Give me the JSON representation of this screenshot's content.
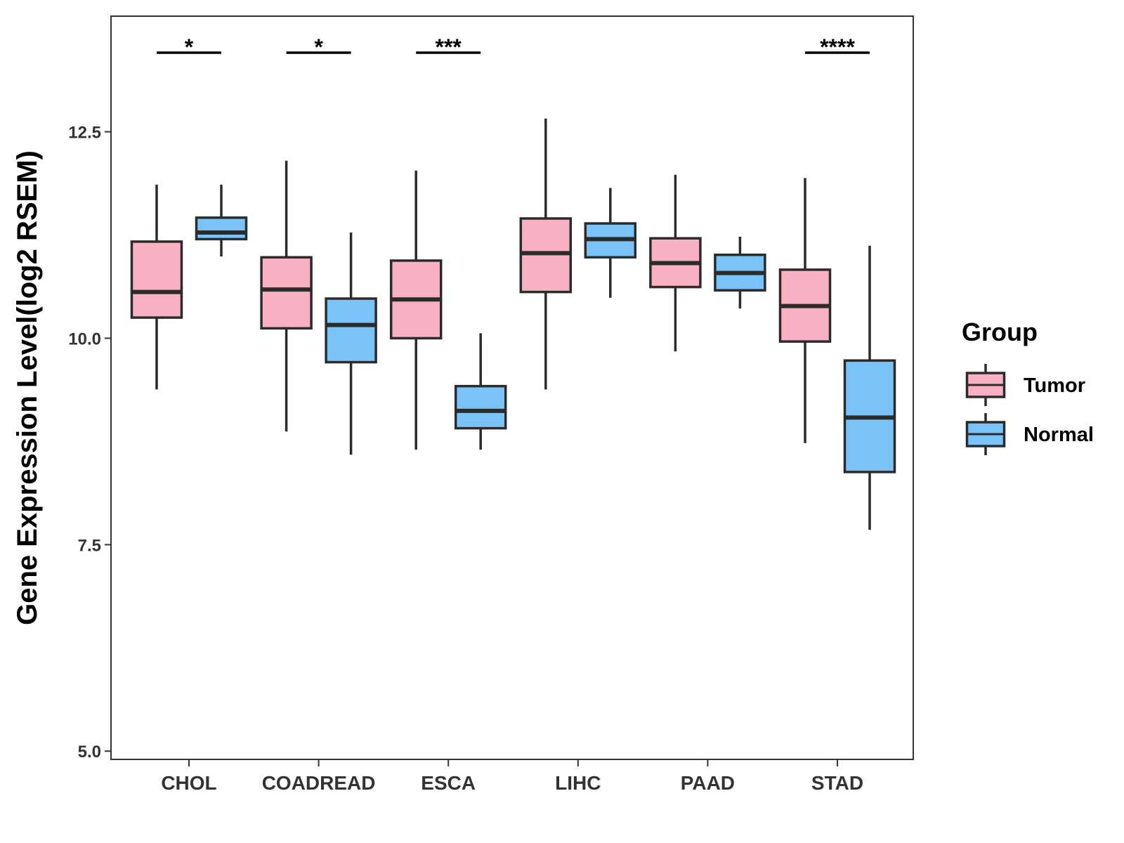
{
  "chart_data": {
    "type": "boxplot",
    "title": "",
    "xlabel": "",
    "ylabel": "Gene Expression Level(log2 RSEM)",
    "ylim": [
      4.9,
      13.9
    ],
    "yticks": [
      5.0,
      7.5,
      10.0,
      12.5
    ],
    "ytick_labels": [
      "5.0",
      "7.5",
      "10.0",
      "12.5"
    ],
    "categories": [
      "CHOL",
      "COADREAD",
      "ESCA",
      "LIHC",
      "PAAD",
      "STAD"
    ],
    "legend": {
      "title": "Group",
      "position": "right",
      "items": [
        {
          "label": "Tumor",
          "color": "#F9B0C2"
        },
        {
          "label": "Normal",
          "color": "#79C3F8"
        }
      ]
    },
    "series": [
      {
        "name": "Tumor",
        "color": "#F9B0C2",
        "boxes": [
          {
            "whisker_low": 9.38,
            "q1": 10.25,
            "median": 10.56,
            "q3": 11.17,
            "whisker_high": 11.86
          },
          {
            "whisker_low": 8.87,
            "q1": 10.12,
            "median": 10.59,
            "q3": 10.98,
            "whisker_high": 12.15
          },
          {
            "whisker_low": 8.65,
            "q1": 10.0,
            "median": 10.47,
            "q3": 10.94,
            "whisker_high": 12.03
          },
          {
            "whisker_low": 9.38,
            "q1": 10.56,
            "median": 11.03,
            "q3": 11.45,
            "whisker_high": 12.66
          },
          {
            "whisker_low": 9.84,
            "q1": 10.62,
            "median": 10.91,
            "q3": 11.21,
            "whisker_high": 11.98
          },
          {
            "whisker_low": 8.73,
            "q1": 9.96,
            "median": 10.39,
            "q3": 10.83,
            "whisker_high": 11.94
          }
        ]
      },
      {
        "name": "Normal",
        "color": "#79C3F8",
        "boxes": [
          {
            "whisker_low": 10.99,
            "q1": 11.2,
            "median": 11.28,
            "q3": 11.46,
            "whisker_high": 11.86
          },
          {
            "whisker_low": 8.59,
            "q1": 9.71,
            "median": 10.16,
            "q3": 10.48,
            "whisker_high": 11.28
          },
          {
            "whisker_low": 8.65,
            "q1": 8.91,
            "median": 9.12,
            "q3": 9.42,
            "whisker_high": 10.06
          },
          {
            "whisker_low": 10.49,
            "q1": 10.98,
            "median": 11.2,
            "q3": 11.39,
            "whisker_high": 11.82
          },
          {
            "whisker_low": 10.36,
            "q1": 10.58,
            "median": 10.79,
            "q3": 11.01,
            "whisker_high": 11.23
          },
          {
            "whisker_low": 7.68,
            "q1": 8.38,
            "median": 9.04,
            "q3": 9.73,
            "whisker_high": 11.12
          }
        ]
      }
    ],
    "significance": [
      {
        "category": "CHOL",
        "label": "*"
      },
      {
        "category": "COADREAD",
        "label": "*"
      },
      {
        "category": "ESCA",
        "label": "***"
      },
      {
        "category": "STAD",
        "label": "****"
      }
    ]
  }
}
